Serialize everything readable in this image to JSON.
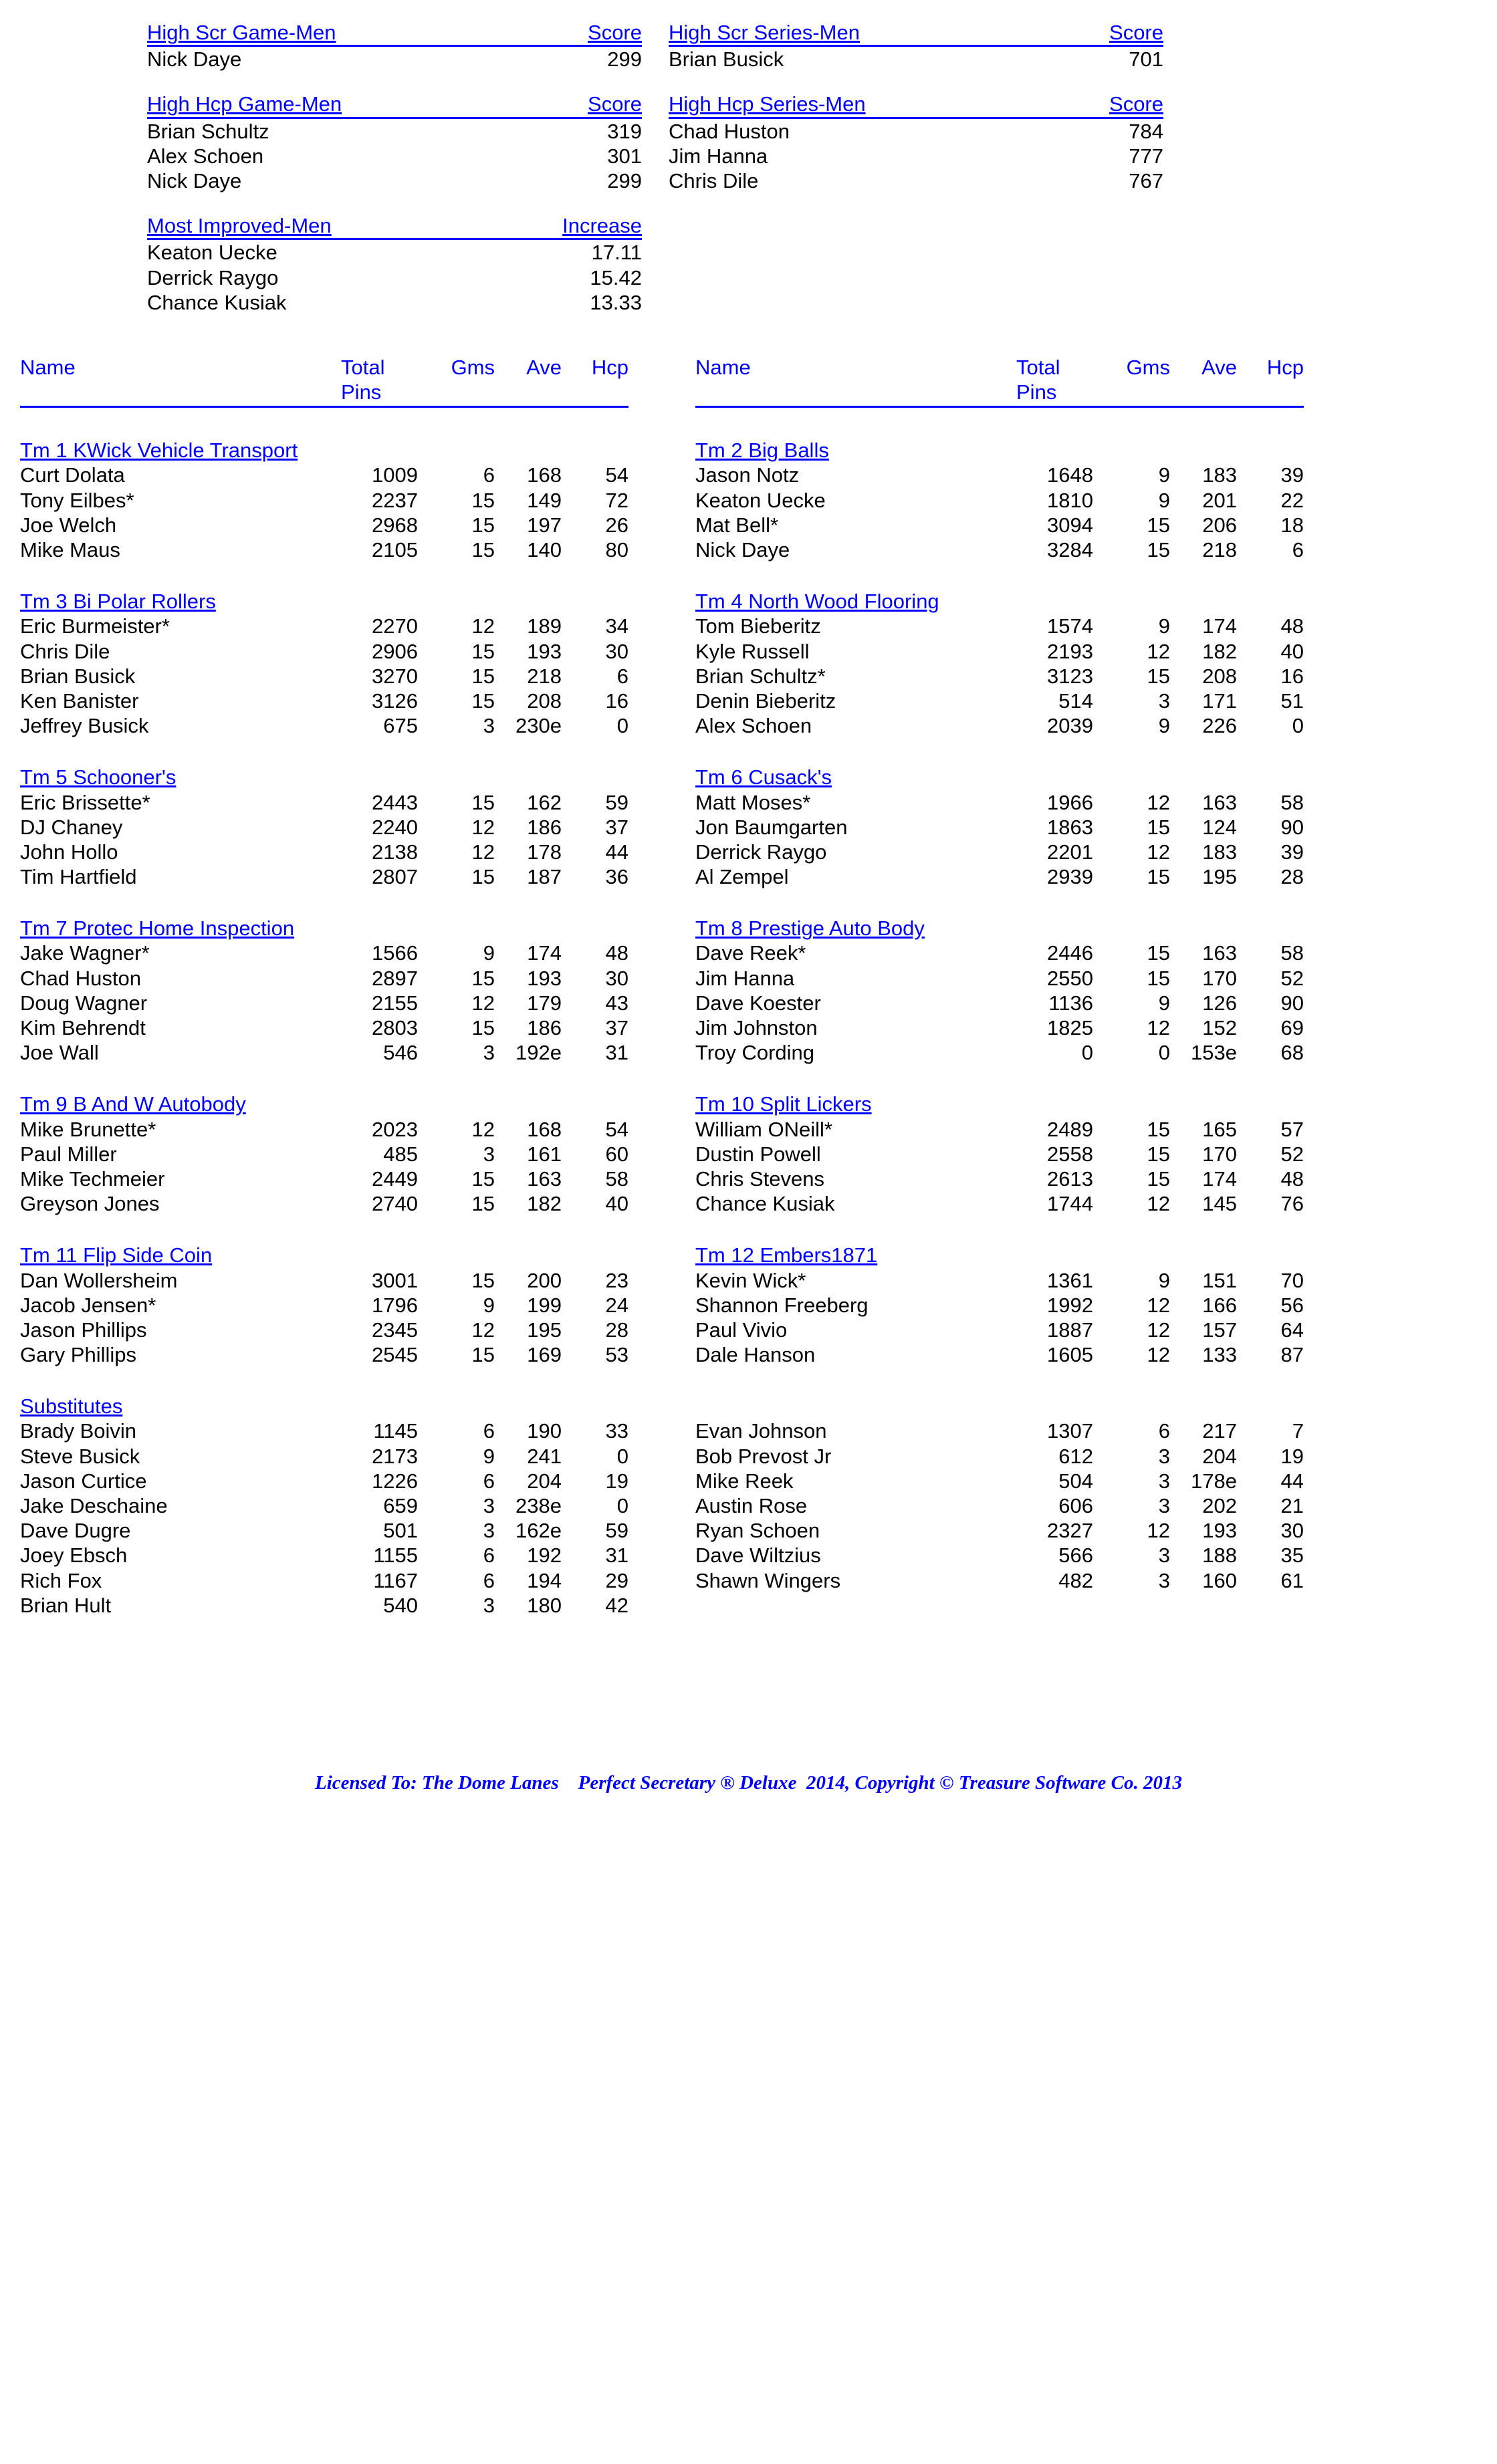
{
  "highScrGame": {
    "title": "High Scr Game-Men",
    "scoreLabel": "Score",
    "rows": [
      {
        "name": "Nick Daye",
        "val": "299"
      }
    ]
  },
  "highScrSeries": {
    "title": "High Scr Series-Men",
    "scoreLabel": "Score",
    "rows": [
      {
        "name": "Brian Busick",
        "val": "701"
      }
    ]
  },
  "highHcpGame": {
    "title": "High Hcp Game-Men",
    "scoreLabel": "Score",
    "rows": [
      {
        "name": "Brian Schultz",
        "val": "319"
      },
      {
        "name": "Alex Schoen",
        "val": "301"
      },
      {
        "name": "Nick Daye",
        "val": "299"
      }
    ]
  },
  "highHcpSeries": {
    "title": "High Hcp Series-Men",
    "scoreLabel": "Score",
    "rows": [
      {
        "name": "Chad Huston",
        "val": "784"
      },
      {
        "name": "Jim Hanna",
        "val": "777"
      },
      {
        "name": "Chris Dile",
        "val": "767"
      }
    ]
  },
  "mostImproved": {
    "title": "Most Improved-Men",
    "scoreLabel": "Increase",
    "rows": [
      {
        "name": "Keaton Uecke",
        "val": "17.11"
      },
      {
        "name": "Derrick Raygo",
        "val": "15.42"
      },
      {
        "name": "Chance Kusiak",
        "val": "13.33"
      }
    ]
  },
  "headers": {
    "name": "Name",
    "total": "Total",
    "pins": "Pins",
    "gms": "Gms",
    "ave": "Ave",
    "hcp": "Hcp"
  },
  "teams": [
    {
      "name": "Tm 1 KWick Vehicle Transport",
      "players": [
        {
          "name": "Curt Dolata",
          "pins": "1009",
          "gms": "6",
          "ave": "168",
          "hcp": "54"
        },
        {
          "name": "Tony Eilbes*",
          "pins": "2237",
          "gms": "15",
          "ave": "149",
          "hcp": "72"
        },
        {
          "name": "Joe Welch",
          "pins": "2968",
          "gms": "15",
          "ave": "197",
          "hcp": "26"
        },
        {
          "name": "Mike Maus",
          "pins": "2105",
          "gms": "15",
          "ave": "140",
          "hcp": "80"
        }
      ]
    },
    {
      "name": "Tm 2 Big Balls",
      "players": [
        {
          "name": "Jason Notz",
          "pins": "1648",
          "gms": "9",
          "ave": "183",
          "hcp": "39"
        },
        {
          "name": "Keaton Uecke",
          "pins": "1810",
          "gms": "9",
          "ave": "201",
          "hcp": "22"
        },
        {
          "name": "Mat Bell*",
          "pins": "3094",
          "gms": "15",
          "ave": "206",
          "hcp": "18"
        },
        {
          "name": "Nick Daye",
          "pins": "3284",
          "gms": "15",
          "ave": "218",
          "hcp": "6"
        }
      ]
    },
    {
      "name": "Tm 3 Bi Polar Rollers",
      "players": [
        {
          "name": "Eric Burmeister*",
          "pins": "2270",
          "gms": "12",
          "ave": "189",
          "hcp": "34"
        },
        {
          "name": "Chris Dile",
          "pins": "2906",
          "gms": "15",
          "ave": "193",
          "hcp": "30"
        },
        {
          "name": "Brian Busick",
          "pins": "3270",
          "gms": "15",
          "ave": "218",
          "hcp": "6"
        },
        {
          "name": "Ken Banister",
          "pins": "3126",
          "gms": "15",
          "ave": "208",
          "hcp": "16"
        },
        {
          "name": "Jeffrey Busick",
          "pins": "675",
          "gms": "3",
          "ave": "230e",
          "hcp": "0"
        }
      ]
    },
    {
      "name": "Tm 4 North Wood Flooring",
      "players": [
        {
          "name": "Tom Bieberitz",
          "pins": "1574",
          "gms": "9",
          "ave": "174",
          "hcp": "48"
        },
        {
          "name": "Kyle Russell",
          "pins": "2193",
          "gms": "12",
          "ave": "182",
          "hcp": "40"
        },
        {
          "name": "Brian Schultz*",
          "pins": "3123",
          "gms": "15",
          "ave": "208",
          "hcp": "16"
        },
        {
          "name": "Denin Bieberitz",
          "pins": "514",
          "gms": "3",
          "ave": "171",
          "hcp": "51"
        },
        {
          "name": "Alex Schoen",
          "pins": "2039",
          "gms": "9",
          "ave": "226",
          "hcp": "0"
        }
      ]
    },
    {
      "name": "Tm 5 Schooner's",
      "players": [
        {
          "name": "Eric Brissette*",
          "pins": "2443",
          "gms": "15",
          "ave": "162",
          "hcp": "59"
        },
        {
          "name": "DJ Chaney",
          "pins": "2240",
          "gms": "12",
          "ave": "186",
          "hcp": "37"
        },
        {
          "name": "John Hollo",
          "pins": "2138",
          "gms": "12",
          "ave": "178",
          "hcp": "44"
        },
        {
          "name": "Tim Hartfield",
          "pins": "2807",
          "gms": "15",
          "ave": "187",
          "hcp": "36"
        }
      ]
    },
    {
      "name": "Tm 6 Cusack's",
      "players": [
        {
          "name": "Matt Moses*",
          "pins": "1966",
          "gms": "12",
          "ave": "163",
          "hcp": "58"
        },
        {
          "name": "Jon Baumgarten",
          "pins": "1863",
          "gms": "15",
          "ave": "124",
          "hcp": "90"
        },
        {
          "name": "Derrick Raygo",
          "pins": "2201",
          "gms": "12",
          "ave": "183",
          "hcp": "39"
        },
        {
          "name": "Al Zempel",
          "pins": "2939",
          "gms": "15",
          "ave": "195",
          "hcp": "28"
        }
      ]
    },
    {
      "name": "Tm 7 Protec Home Inspection",
      "players": [
        {
          "name": "Jake Wagner*",
          "pins": "1566",
          "gms": "9",
          "ave": "174",
          "hcp": "48"
        },
        {
          "name": "Chad Huston",
          "pins": "2897",
          "gms": "15",
          "ave": "193",
          "hcp": "30"
        },
        {
          "name": "Doug Wagner",
          "pins": "2155",
          "gms": "12",
          "ave": "179",
          "hcp": "43"
        },
        {
          "name": "Kim Behrendt",
          "pins": "2803",
          "gms": "15",
          "ave": "186",
          "hcp": "37"
        },
        {
          "name": "Joe Wall",
          "pins": "546",
          "gms": "3",
          "ave": "192e",
          "hcp": "31"
        }
      ]
    },
    {
      "name": "Tm 8 Prestige Auto Body",
      "players": [
        {
          "name": "Dave Reek*",
          "pins": "2446",
          "gms": "15",
          "ave": "163",
          "hcp": "58"
        },
        {
          "name": "Jim Hanna",
          "pins": "2550",
          "gms": "15",
          "ave": "170",
          "hcp": "52"
        },
        {
          "name": "Dave Koester",
          "pins": "1136",
          "gms": "9",
          "ave": "126",
          "hcp": "90"
        },
        {
          "name": "Jim Johnston",
          "pins": "1825",
          "gms": "12",
          "ave": "152",
          "hcp": "69"
        },
        {
          "name": "Troy Cording",
          "pins": "0",
          "gms": "0",
          "ave": "153e",
          "hcp": "68"
        }
      ]
    },
    {
      "name": "Tm 9 B And W Autobody",
      "players": [
        {
          "name": "Mike Brunette*",
          "pins": "2023",
          "gms": "12",
          "ave": "168",
          "hcp": "54"
        },
        {
          "name": "Paul Miller",
          "pins": "485",
          "gms": "3",
          "ave": "161",
          "hcp": "60"
        },
        {
          "name": "Mike Techmeier",
          "pins": "2449",
          "gms": "15",
          "ave": "163",
          "hcp": "58"
        },
        {
          "name": "Greyson Jones",
          "pins": "2740",
          "gms": "15",
          "ave": "182",
          "hcp": "40"
        }
      ]
    },
    {
      "name": "Tm 10 Split Lickers",
      "players": [
        {
          "name": "William ONeill*",
          "pins": "2489",
          "gms": "15",
          "ave": "165",
          "hcp": "57"
        },
        {
          "name": "Dustin Powell",
          "pins": "2558",
          "gms": "15",
          "ave": "170",
          "hcp": "52"
        },
        {
          "name": "Chris Stevens",
          "pins": "2613",
          "gms": "15",
          "ave": "174",
          "hcp": "48"
        },
        {
          "name": "Chance Kusiak",
          "pins": "1744",
          "gms": "12",
          "ave": "145",
          "hcp": "76"
        }
      ]
    },
    {
      "name": "Tm 11 Flip Side Coin",
      "players": [
        {
          "name": "Dan Wollersheim",
          "pins": "3001",
          "gms": "15",
          "ave": "200",
          "hcp": "23"
        },
        {
          "name": "Jacob Jensen*",
          "pins": "1796",
          "gms": "9",
          "ave": "199",
          "hcp": "24"
        },
        {
          "name": "Jason Phillips",
          "pins": "2345",
          "gms": "12",
          "ave": "195",
          "hcp": "28"
        },
        {
          "name": "Gary Phillips",
          "pins": "2545",
          "gms": "15",
          "ave": "169",
          "hcp": "53"
        }
      ]
    },
    {
      "name": "Tm 12 Embers1871",
      "players": [
        {
          "name": "Kevin Wick*",
          "pins": "1361",
          "gms": "9",
          "ave": "151",
          "hcp": "70"
        },
        {
          "name": "Shannon Freeberg",
          "pins": "1992",
          "gms": "12",
          "ave": "166",
          "hcp": "56"
        },
        {
          "name": "Paul Vivio",
          "pins": "1887",
          "gms": "12",
          "ave": "157",
          "hcp": "64"
        },
        {
          "name": "Dale Hanson",
          "pins": "1605",
          "gms": "12",
          "ave": "133",
          "hcp": "87"
        }
      ]
    }
  ],
  "subs": {
    "title": "Substitutes",
    "left": [
      {
        "name": "Brady Boivin",
        "pins": "1145",
        "gms": "6",
        "ave": "190",
        "hcp": "33"
      },
      {
        "name": "Steve Busick",
        "pins": "2173",
        "gms": "9",
        "ave": "241",
        "hcp": "0"
      },
      {
        "name": "Jason Curtice",
        "pins": "1226",
        "gms": "6",
        "ave": "204",
        "hcp": "19"
      },
      {
        "name": "Jake Deschaine",
        "pins": "659",
        "gms": "3",
        "ave": "238e",
        "hcp": "0"
      },
      {
        "name": "Dave Dugre",
        "pins": "501",
        "gms": "3",
        "ave": "162e",
        "hcp": "59"
      },
      {
        "name": "Joey Ebsch",
        "pins": "1155",
        "gms": "6",
        "ave": "192",
        "hcp": "31"
      },
      {
        "name": "Rich Fox",
        "pins": "1167",
        "gms": "6",
        "ave": "194",
        "hcp": "29"
      },
      {
        "name": "Brian Hult",
        "pins": "540",
        "gms": "3",
        "ave": "180",
        "hcp": "42"
      }
    ],
    "right": [
      {
        "name": "Evan Johnson",
        "pins": "1307",
        "gms": "6",
        "ave": "217",
        "hcp": "7"
      },
      {
        "name": "Bob Prevost Jr",
        "pins": "612",
        "gms": "3",
        "ave": "204",
        "hcp": "19"
      },
      {
        "name": "Mike Reek",
        "pins": "504",
        "gms": "3",
        "ave": "178e",
        "hcp": "44"
      },
      {
        "name": "Austin Rose",
        "pins": "606",
        "gms": "3",
        "ave": "202",
        "hcp": "21"
      },
      {
        "name": "Ryan Schoen",
        "pins": "2327",
        "gms": "12",
        "ave": "193",
        "hcp": "30"
      },
      {
        "name": "Dave Wiltzius",
        "pins": "566",
        "gms": "3",
        "ave": "188",
        "hcp": "35"
      },
      {
        "name": "Shawn Wingers",
        "pins": "482",
        "gms": "3",
        "ave": "160",
        "hcp": "61"
      }
    ]
  },
  "footer": "Licensed To: The Dome Lanes    Perfect Secretary ® Deluxe  2014, Copyright © Treasure Software Co. 2013"
}
